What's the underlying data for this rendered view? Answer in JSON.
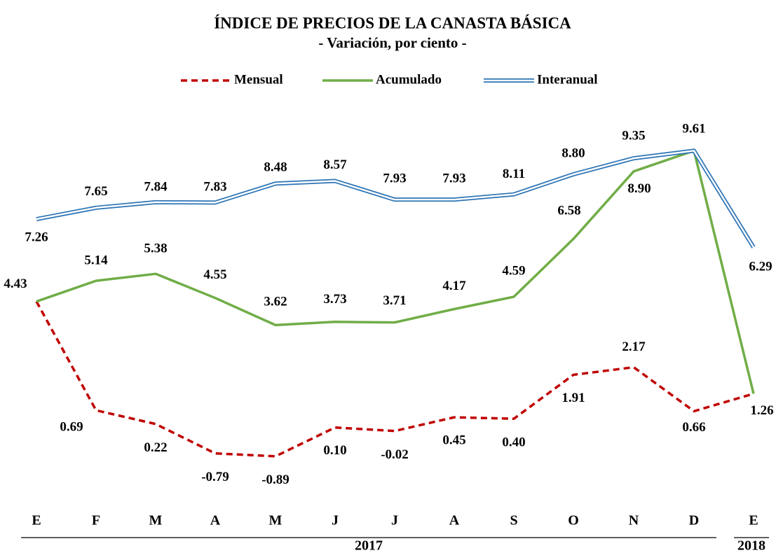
{
  "chart_data": {
    "type": "line",
    "title": "ÍNDICE DE PRECIOS DE LA CANASTA BÁSICA",
    "subtitle": "- Variación, por ciento -",
    "groups": [
      {
        "label": "2017",
        "categories": [
          "E",
          "F",
          "M",
          "A",
          "M",
          "J",
          "J",
          "A",
          "S",
          "O",
          "N",
          "D"
        ]
      },
      {
        "label": "2018",
        "categories": [
          "E"
        ]
      }
    ],
    "ylim": [
      -2,
      10.7
    ],
    "legend": "top",
    "series": [
      {
        "name": "Mensual",
        "color": "#c00000",
        "style": "dashed",
        "values": [
          4.43,
          0.69,
          0.22,
          -0.79,
          -0.89,
          0.1,
          -0.02,
          0.45,
          0.4,
          1.91,
          2.17,
          0.66,
          1.26
        ],
        "value_labels": [
          "4.43",
          "0.69",
          "0.22",
          "-0.79",
          "-0.89",
          "0.10",
          "-0.02",
          "0.45",
          "0.40",
          "1.91",
          "2.17",
          "0.66",
          "1.26"
        ]
      },
      {
        "name": "Acumulado",
        "color": "#70ad47",
        "style": "solid",
        "values": [
          4.43,
          5.14,
          5.38,
          4.55,
          3.62,
          3.73,
          3.71,
          4.17,
          4.59,
          6.58,
          8.9,
          9.61,
          1.26
        ],
        "value_labels": [
          "4.43",
          "5.14",
          "5.38",
          "4.55",
          "3.62",
          "3.73",
          "3.71",
          "4.17",
          "4.59",
          "6.58",
          "8.90",
          "9.61",
          "1.26"
        ]
      },
      {
        "name": "Interanual",
        "color": "#2e75b6",
        "style": "double",
        "values": [
          7.26,
          7.65,
          7.84,
          7.83,
          8.48,
          8.57,
          7.93,
          7.93,
          8.11,
          8.8,
          9.35,
          9.61,
          6.29
        ],
        "value_labels": [
          "7.26",
          "7.65",
          "7.84",
          "7.83",
          "8.48",
          "8.57",
          "7.93",
          "7.93",
          "8.11",
          "8.80",
          "9.35",
          "9.61",
          "6.29"
        ]
      }
    ]
  }
}
